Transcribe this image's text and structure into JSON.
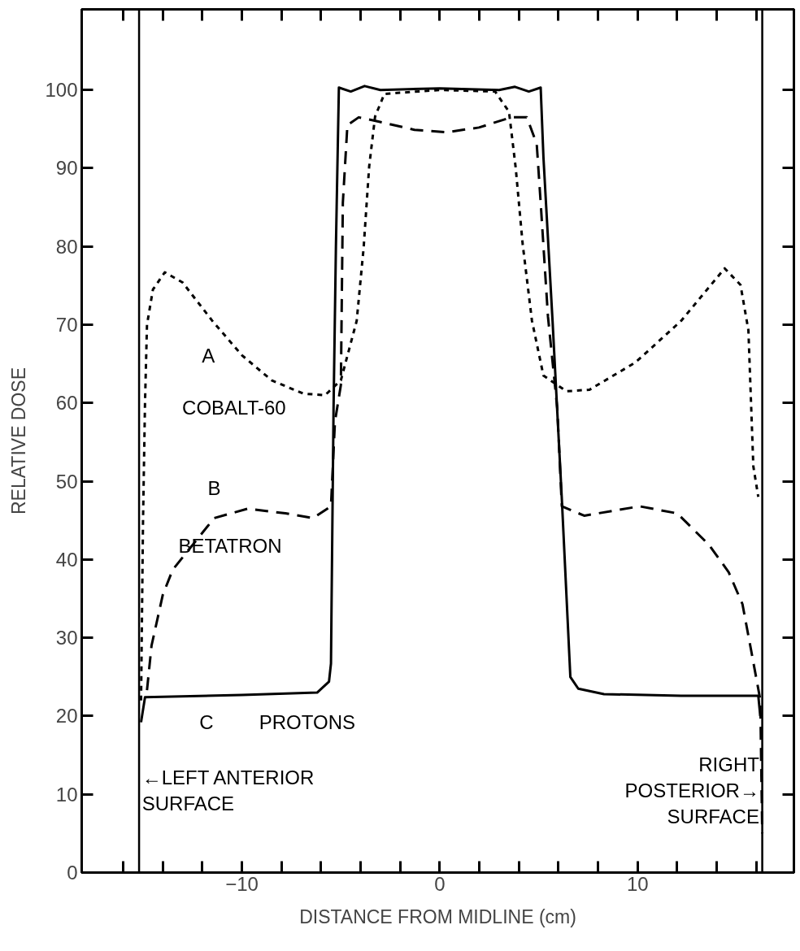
{
  "chart_data": {
    "type": "line",
    "xlabel": "DISTANCE FROM MIDLINE (cm)",
    "ylabel": "RELATIVE DOSE",
    "xlim": [
      -18.1,
      17.9
    ],
    "ylim": [
      0,
      110.3
    ],
    "xticks": [
      {
        "value": -16,
        "label": null
      },
      {
        "value": -14,
        "label": null
      },
      {
        "value": -12,
        "label": null
      },
      -10,
      {
        "value": -8,
        "label": null
      },
      {
        "value": -6,
        "label": null
      },
      {
        "value": -4,
        "label": null
      },
      {
        "value": -2,
        "label": null
      },
      0,
      {
        "value": 2,
        "label": null
      },
      {
        "value": 4,
        "label": null
      },
      {
        "value": 6,
        "label": null
      },
      {
        "value": 8,
        "label": null
      },
      10,
      {
        "value": 12,
        "label": null
      },
      {
        "value": 14,
        "label": null
      },
      {
        "value": 16,
        "label": null
      }
    ],
    "yticks": [
      0,
      10,
      20,
      30,
      40,
      50,
      60,
      70,
      80,
      90,
      100
    ],
    "series": [
      {
        "color": "#000000",
        "line_style": "dotted",
        "x": [
          -15.1,
          -15.0,
          -14.9,
          -14.8,
          -14.5,
          -13.9,
          -13.0,
          -11.5,
          -10.0,
          -8.5,
          -6.9,
          -5.8,
          -5.0,
          -4.2,
          -3.85,
          -3.57,
          -3.27,
          -2.8,
          0,
          2.8,
          3.5,
          3.84,
          4.19,
          4.66,
          5.24,
          6.4,
          7.57,
          9.9,
          12.2,
          14.4,
          15.2,
          15.6,
          15.85,
          16.1
        ],
        "values": [
          22,
          45,
          60,
          70,
          74.5,
          76.7,
          75.4,
          70.5,
          66.1,
          62.9,
          61.2,
          61,
          62.9,
          70.5,
          79.8,
          90.2,
          96.6,
          99.5,
          100,
          99.8,
          97.2,
          90,
          80.3,
          70.5,
          63.5,
          61.5,
          61.7,
          65.2,
          70.5,
          77.2,
          75.1,
          69.3,
          51.9,
          48
        ]
      },
      {
        "color": "#000000",
        "line_style": "dashed",
        "x": [
          -14.8,
          -14.57,
          -14.0,
          -13.5,
          -11.4,
          -9.7,
          -7.8,
          -6.4,
          -5.5,
          -5.3,
          -5.0,
          -4.9,
          -4.67,
          -4.1,
          -3.15,
          -1.28,
          0.35,
          1.98,
          3.6,
          4.4,
          4.9,
          5.1,
          5.47,
          5.94,
          6.17,
          7.3,
          10.1,
          12.0,
          13.6,
          14.6,
          15.3,
          15.73,
          16.2,
          16.3
        ],
        "values": [
          23.3,
          29,
          35.5,
          38.7,
          45.3,
          46.5,
          45.9,
          45.3,
          46.8,
          57.6,
          62.3,
          85.6,
          95.5,
          96.5,
          96,
          94.9,
          94.6,
          95.2,
          96.5,
          96.5,
          93.1,
          85.6,
          71,
          59.3,
          46.8,
          45.6,
          46.8,
          45.9,
          41.9,
          38.4,
          34.3,
          28.5,
          22.1,
          5
        ]
      },
      {
        "color": "#000000",
        "line_style": "solid",
        "x": [
          -15.1,
          -14.9,
          -10.0,
          -6.2,
          -5.6,
          -5.5,
          -5.37,
          -5.25,
          -5.1,
          -4.5,
          -3.8,
          -3.0,
          0,
          3.0,
          3.8,
          4.5,
          5.1,
          5.24,
          5.7,
          6.17,
          6.6,
          7.0,
          8.3,
          12.2,
          16.1,
          16.2
        ],
        "values": [
          19.2,
          22.4,
          22.7,
          23,
          24.4,
          26.7,
          59.3,
          80,
          100.3,
          99.8,
          100.5,
          100,
          100.2,
          100,
          100.4,
          99.8,
          100.3,
          91.4,
          70.5,
          47.7,
          25,
          23.5,
          22.8,
          22.6,
          22.6,
          20
        ]
      }
    ],
    "ref_lines": [
      {
        "axis": "x",
        "value": -15.2,
        "color": "#000000",
        "label": "←LEFT ANTERIOR\nSURFACE"
      },
      {
        "axis": "x",
        "value": 16.3,
        "color": "#000000",
        "label": "RIGHT\nPOSTERIOR→\nSURFACE"
      }
    ],
    "annotations": [
      "A",
      "COBALT-60",
      "B",
      "BETATRON",
      "C",
      "PROTONS"
    ]
  }
}
